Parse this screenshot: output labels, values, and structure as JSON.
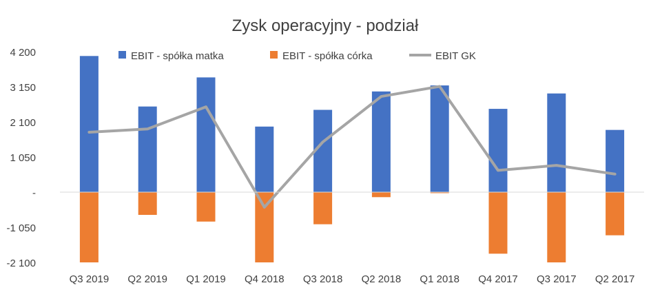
{
  "chart_data": {
    "type": "bar",
    "title": "Zysk operacyjny - podział",
    "categories": [
      "Q3 2019",
      "Q2 2019",
      "Q1 2019",
      "Q4 2018",
      "Q3 2018",
      "Q2 2018",
      "Q1 2018",
      "Q4 2017",
      "Q3 2017",
      "Q2 2017"
    ],
    "series": [
      {
        "name": "EBIT - spółka matka",
        "kind": "bar",
        "color": "#4472C4",
        "values": [
          4070,
          2560,
          3430,
          1960,
          2460,
          3010,
          3190,
          2490,
          2950,
          1860
        ]
      },
      {
        "name": "EBIT - spółka córka",
        "kind": "bar",
        "color": "#ED7D31",
        "values": [
          -2100,
          -680,
          -880,
          -2100,
          -960,
          -150,
          -30,
          -1840,
          -2100,
          -1290
        ]
      },
      {
        "name": "EBIT GK",
        "kind": "line",
        "color": "#A5A5A5",
        "values": [
          1790,
          1890,
          2550,
          -450,
          1500,
          2860,
          3160,
          650,
          800,
          540
        ]
      }
    ],
    "y_ticks": [
      "4 200",
      "3 150",
      "2 100",
      "1 050",
      "-",
      "-1 050",
      "-2 100"
    ],
    "ylim": [
      -2100,
      4200
    ],
    "legend_position": "top",
    "grid": false
  }
}
